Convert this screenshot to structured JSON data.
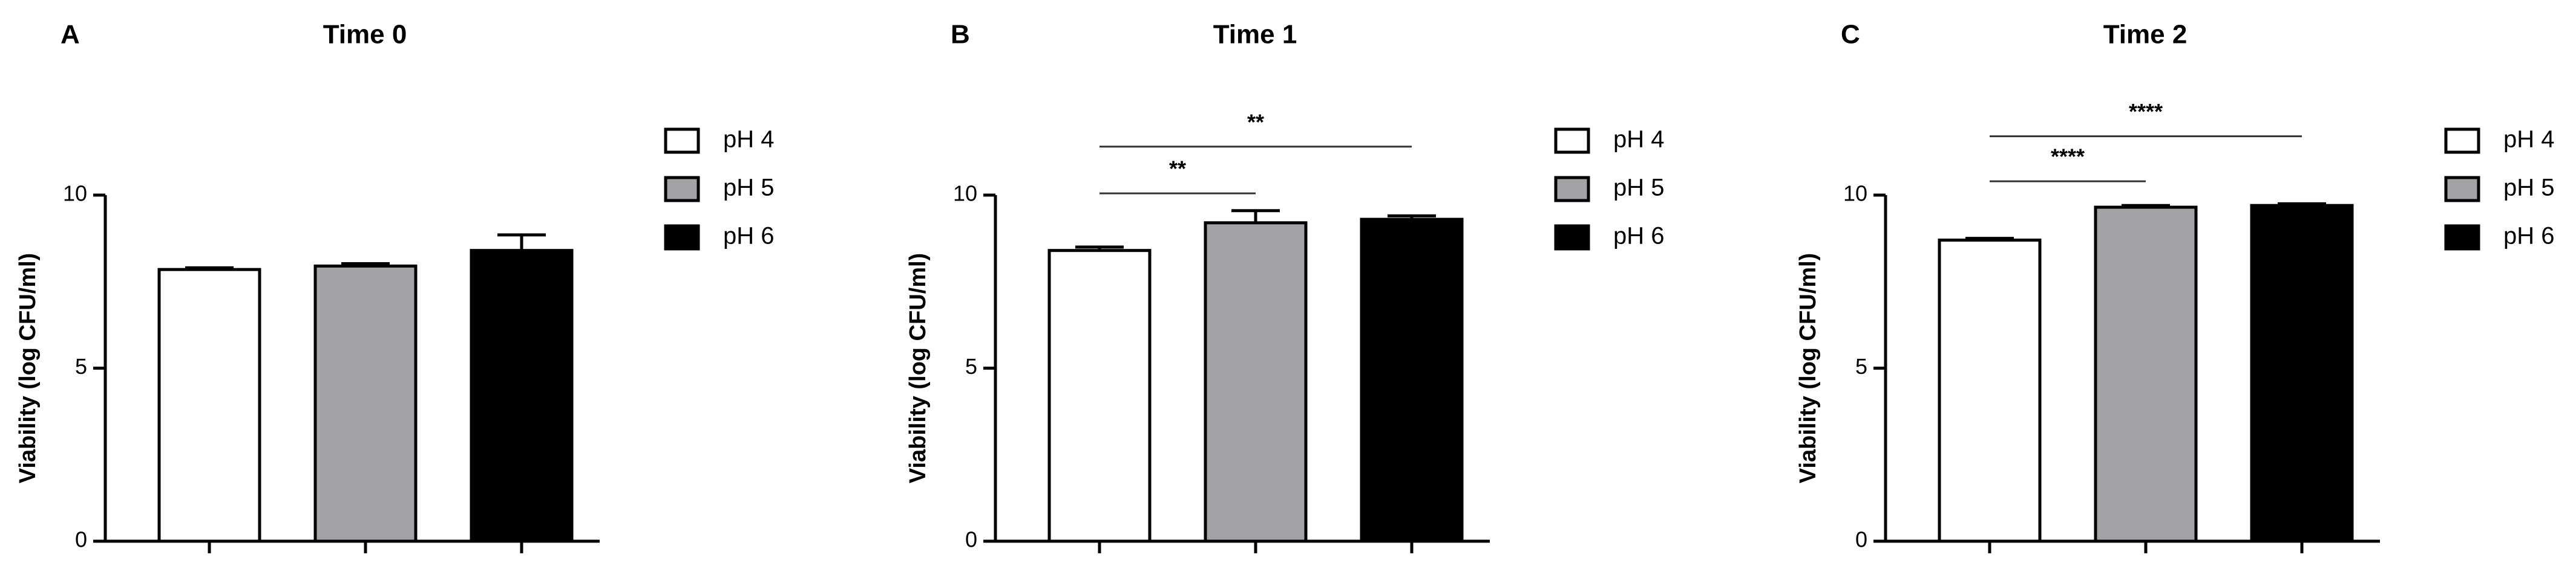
{
  "chart_data": [
    {
      "type": "bar",
      "label": "A",
      "title": "Time 0",
      "ylabel": "Viability (log CFU/ml)",
      "ylim": [
        0,
        10
      ],
      "yticks": [
        0,
        5,
        10
      ],
      "series": [
        {
          "name": "pH 4",
          "color": "#ffffff",
          "values": [
            7.85
          ],
          "errors": [
            0.05
          ]
        },
        {
          "name": "pH 5",
          "color": "#a3a3a6",
          "values": [
            7.95
          ],
          "errors": [
            0.07
          ]
        },
        {
          "name": "pH 6",
          "color": "#000000",
          "values": [
            8.4
          ],
          "errors": [
            0.45
          ]
        }
      ],
      "comparisons": []
    },
    {
      "type": "bar",
      "label": "B",
      "title": "Time 1",
      "ylabel": "Viability (log CFU/ml)",
      "ylim": [
        0,
        10
      ],
      "yticks": [
        0,
        5,
        10
      ],
      "series": [
        {
          "name": "pH 4",
          "color": "#ffffff",
          "values": [
            8.4
          ],
          "errors": [
            0.1
          ]
        },
        {
          "name": "pH 5",
          "color": "#a3a3a6",
          "values": [
            9.2
          ],
          "errors": [
            0.35
          ]
        },
        {
          "name": "pH 6",
          "color": "#000000",
          "values": [
            9.3
          ],
          "errors": [
            0.1
          ]
        }
      ],
      "comparisons": [
        {
          "from": 0,
          "to": 1,
          "y": 10.05,
          "label": "**"
        },
        {
          "from": 0,
          "to": 2,
          "y": 11.4,
          "label": "**"
        }
      ]
    },
    {
      "type": "bar",
      "label": "C",
      "title": "Time 2",
      "ylabel": "Viability (log CFU/ml)",
      "ylim": [
        0,
        10
      ],
      "yticks": [
        0,
        5,
        10
      ],
      "series": [
        {
          "name": "pH 4",
          "color": "#ffffff",
          "values": [
            8.7
          ],
          "errors": [
            0.05
          ]
        },
        {
          "name": "pH 5",
          "color": "#a3a3a6",
          "values": [
            9.65
          ],
          "errors": [
            0.05
          ]
        },
        {
          "name": "pH 6",
          "color": "#000000",
          "values": [
            9.7
          ],
          "errors": [
            0.05
          ]
        }
      ],
      "comparisons": [
        {
          "from": 0,
          "to": 1,
          "y": 10.4,
          "label": "****"
        },
        {
          "from": 0,
          "to": 2,
          "y": 11.7,
          "label": "****"
        }
      ]
    }
  ]
}
